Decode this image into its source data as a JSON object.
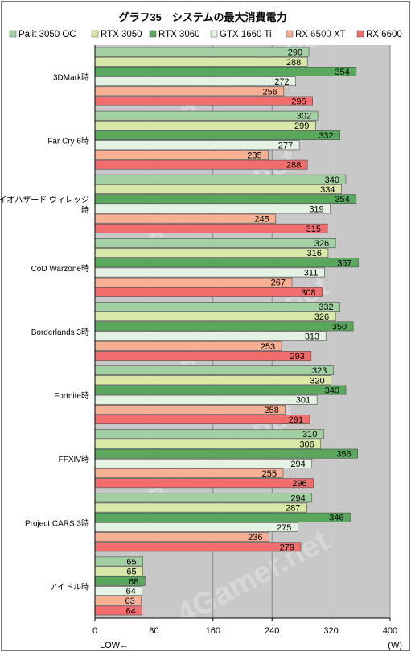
{
  "chart_data": {
    "type": "bar",
    "orientation": "horizontal",
    "title": "グラフ35　システムの最大消費電力",
    "xlabel": "(W)",
    "direction_label": "LOW←",
    "xlim": [
      0,
      400
    ],
    "xticks": [
      0,
      80,
      160,
      240,
      320,
      400
    ],
    "grid": true,
    "legend_position": "top",
    "categories": [
      "3DMark時",
      "Far Cry 6時",
      "バイオハザード ヴィレッジ時",
      "CoD Warzone時",
      "Borderlands 3時",
      "Fortnite時",
      "FFXIV時",
      "Project CARS 3時",
      "アイドル時"
    ],
    "category_lines": [
      [
        "3DMark時"
      ],
      [
        "Far Cry 6時"
      ],
      [
        "バイオハザード ヴィレッジ",
        "時"
      ],
      [
        "CoD Warzone時"
      ],
      [
        "Borderlands 3時"
      ],
      [
        "Fortnite時"
      ],
      [
        "FFXIV時"
      ],
      [
        "Project CARS 3時"
      ],
      [
        "アイドル時"
      ]
    ],
    "series": [
      {
        "name": "Palit 3050 OC",
        "color": "#a3d0a3",
        "values": [
          290,
          302,
          340,
          326,
          332,
          323,
          310,
          294,
          65
        ]
      },
      {
        "name": "RTX 3050",
        "color": "#d8e8a8",
        "values": [
          288,
          299,
          334,
          316,
          326,
          320,
          306,
          287,
          65
        ]
      },
      {
        "name": "RTX 3060",
        "color": "#5aa85e",
        "values": [
          354,
          332,
          354,
          357,
          350,
          340,
          356,
          346,
          68
        ]
      },
      {
        "name": "GTX 1660 Ti",
        "color": "#e4f2e4",
        "values": [
          272,
          277,
          319,
          311,
          313,
          301,
          294,
          275,
          64
        ]
      },
      {
        "name": "RX 6500 XT",
        "color": "#f7b093",
        "values": [
          256,
          235,
          245,
          267,
          253,
          258,
          255,
          236,
          63
        ]
      },
      {
        "name": "RX 6600",
        "color": "#f26e6e",
        "values": [
          295,
          288,
          315,
          308,
          293,
          291,
          296,
          279,
          64
        ]
      }
    ],
    "watermark": "4Gamer.net"
  }
}
